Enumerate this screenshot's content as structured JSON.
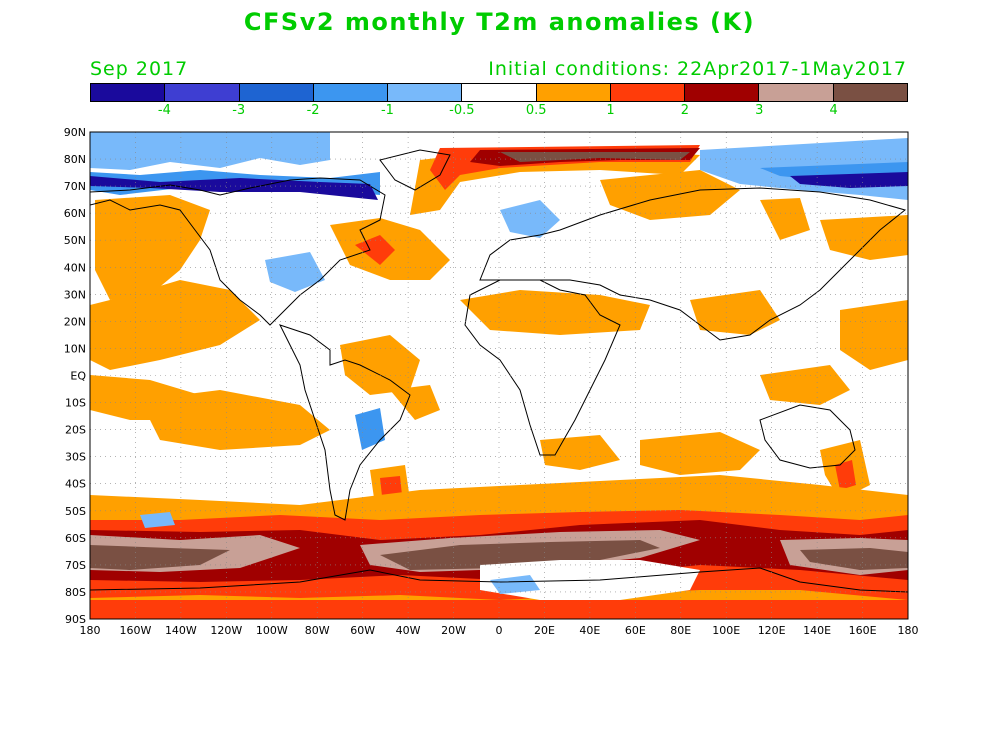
{
  "title": "CFSv2 monthly T2m anomalies (K)",
  "valid_month": "Sep 2017",
  "initial_conditions": "Initial conditions: 22Apr2017-1May2017",
  "colorbar": {
    "colors": [
      "#1a0a9c",
      "#3e3ed2",
      "#1e64d2",
      "#3c96f0",
      "#78b9fa",
      "#ffffff",
      "#ffa000",
      "#ff3c0a",
      "#a00000",
      "#c8a096",
      "#7a5043"
    ],
    "labels": [
      "-4",
      "-3",
      "-2",
      "-1",
      "-0.5",
      "0.5",
      "1",
      "2",
      "3",
      "4"
    ]
  },
  "map": {
    "lat_labels": [
      "90N",
      "80N",
      "70N",
      "60N",
      "50N",
      "40N",
      "30N",
      "20N",
      "10N",
      "EQ",
      "10S",
      "20S",
      "30S",
      "40S",
      "50S",
      "60S",
      "70S",
      "80S",
      "90S"
    ],
    "lon_labels": [
      "180",
      "160W",
      "140W",
      "120W",
      "100W",
      "80W",
      "60W",
      "40W",
      "20W",
      "0",
      "20E",
      "40E",
      "60E",
      "80E",
      "100E",
      "120E",
      "140E",
      "160E",
      "180"
    ]
  }
}
